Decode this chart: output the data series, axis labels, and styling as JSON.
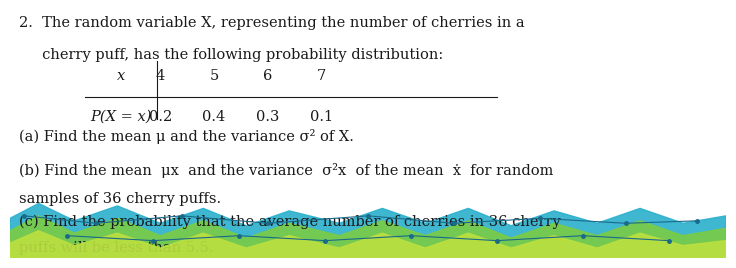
{
  "title_line1": "2.  The random variable X, representing the number of cherries in a",
  "title_line2": "     cherry puff, has the following probability distribution:",
  "table_x_label": "x",
  "table_px_label": "P(X = x)",
  "table_x_values": [
    "4",
    "5",
    "6",
    "7"
  ],
  "table_p_values": [
    "0.2",
    "0.4",
    "0.3",
    "0.1"
  ],
  "line_a": "(a) Find the mean μ and the variance σ² of X.",
  "line_b1": "(b) Find the mean  μx  and the variance  σ²x  of the mean  ẋ  for random",
  "line_b2": "samples of 36 cherry puffs.",
  "line_c1": "(c) Find the probability that the average number of cherries in 36 cherry",
  "line_c2": "puffs will be less than 5.5.",
  "bg_color": "#ffffff",
  "text_color": "#1a1a1a",
  "font_size": 10.5,
  "teal_color": "#2ab0cc",
  "green_color": "#7acc44",
  "lgreen_color": "#bce040",
  "dot_color": "#1a6a8a"
}
